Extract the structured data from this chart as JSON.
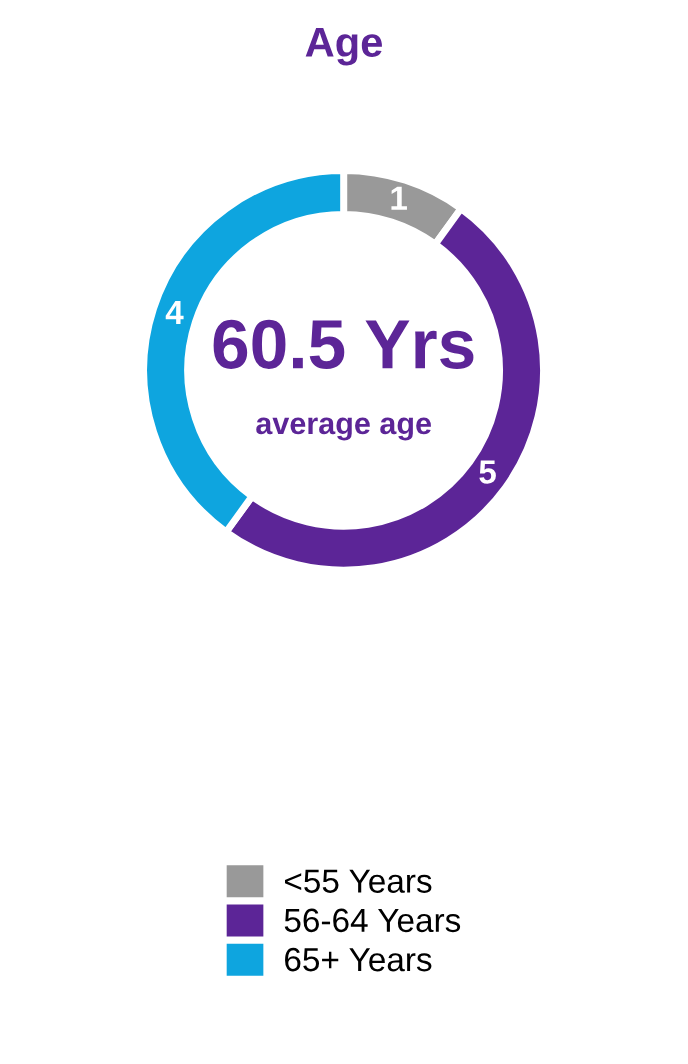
{
  "chart_data": {
    "type": "donut",
    "title": "Age",
    "categories": [
      "<55 Years",
      "56-64 Years",
      "65+ Years"
    ],
    "values": [
      1,
      5,
      4
    ],
    "colors": [
      "#999999",
      "#5c2597",
      "#0ea5df"
    ],
    "data_labels": true,
    "legend": "bottom",
    "annotations": [
      "60.5 Yrs",
      "average age"
    ]
  }
}
